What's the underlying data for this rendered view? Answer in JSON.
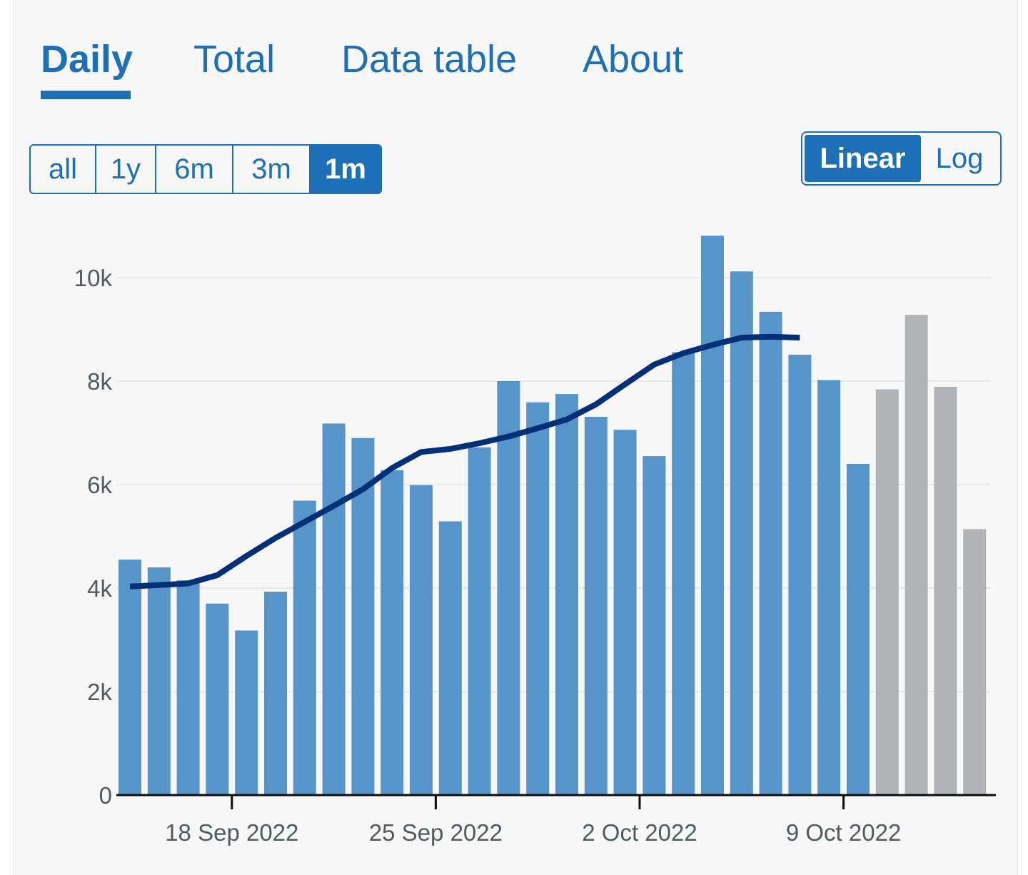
{
  "tabs": [
    {
      "label": "Daily",
      "active": true
    },
    {
      "label": "Total",
      "active": false
    },
    {
      "label": "Data table",
      "active": false
    },
    {
      "label": "About",
      "active": false
    }
  ],
  "range_options": [
    {
      "label": "all",
      "active": false
    },
    {
      "label": "1y",
      "active": false
    },
    {
      "label": "6m",
      "active": false
    },
    {
      "label": "3m",
      "active": false
    },
    {
      "label": "1m",
      "active": true
    }
  ],
  "scale_options": [
    {
      "label": "Linear",
      "active": true
    },
    {
      "label": "Log",
      "active": false
    }
  ],
  "colors": {
    "accent": "#1d70b8",
    "bar": "#5694ca",
    "bar_incomplete": "#b1b4b6",
    "line": "#003078",
    "grid": "#e8e8e8",
    "axis": "#0b0c0c",
    "panel": "#f7f7f7"
  },
  "chart_data": {
    "type": "bar",
    "x": [
      "2022-09-14",
      "2022-09-15",
      "2022-09-16",
      "2022-09-17",
      "2022-09-18",
      "2022-09-19",
      "2022-09-20",
      "2022-09-21",
      "2022-09-22",
      "2022-09-23",
      "2022-09-24",
      "2022-09-25",
      "2022-09-26",
      "2022-09-27",
      "2022-09-28",
      "2022-09-29",
      "2022-09-30",
      "2022-10-01",
      "2022-10-02",
      "2022-10-03",
      "2022-10-04",
      "2022-10-05",
      "2022-10-06",
      "2022-10-07",
      "2022-10-08",
      "2022-10-09",
      "2022-10-10",
      "2022-10-11",
      "2022-10-12",
      "2022-10-13"
    ],
    "series": [
      {
        "type": "bar",
        "values": [
          4550,
          4400,
          4150,
          3700,
          3180,
          3930,
          5690,
          7180,
          6900,
          6280,
          5990,
          5290,
          6720,
          8000,
          7590,
          7750,
          7310,
          7060,
          6550,
          8560,
          10810,
          10120,
          9340,
          8510,
          8020,
          6400,
          7840,
          9280,
          7890,
          5140
        ],
        "incomplete_from_index": 26
      },
      {
        "type": "line",
        "x": [
          "2022-09-14",
          "2022-09-15",
          "2022-09-16",
          "2022-09-17",
          "2022-09-18",
          "2022-09-19",
          "2022-09-20",
          "2022-09-21",
          "2022-09-22",
          "2022-09-23",
          "2022-09-24",
          "2022-09-25",
          "2022-09-26",
          "2022-09-27",
          "2022-09-28",
          "2022-09-29",
          "2022-09-30",
          "2022-10-01",
          "2022-10-02",
          "2022-10-03",
          "2022-10-04",
          "2022-10-05",
          "2022-10-06",
          "2022-10-07"
        ],
        "values": [
          4030,
          4060,
          4090,
          4250,
          4620,
          4970,
          5280,
          5590,
          5910,
          6320,
          6630,
          6690,
          6800,
          6930,
          7090,
          7260,
          7550,
          7940,
          8320,
          8540,
          8700,
          8840,
          8860,
          8840
        ]
      }
    ],
    "ylim": [
      0,
      11000
    ],
    "yticks": [
      0,
      2000,
      4000,
      6000,
      8000,
      10000
    ],
    "ytick_labels": [
      "0",
      "2k",
      "4k",
      "6k",
      "8k",
      "10k"
    ],
    "xticks": [
      "2022-09-18",
      "2022-09-25",
      "2022-10-02",
      "2022-10-09"
    ],
    "xtick_labels": [
      "18 Sep 2022",
      "25 Sep 2022",
      "2 Oct 2022",
      "9 Oct 2022"
    ],
    "grid": true
  }
}
